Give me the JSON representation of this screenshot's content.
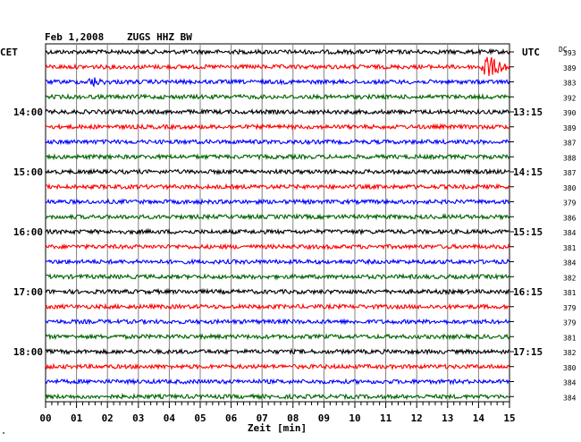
{
  "header": {
    "date": "Feb 1,2008",
    "station": "ZUGS HHZ BW"
  },
  "left_axis_label": "CET",
  "right_axis_label": "UTC",
  "dc_label": "DC",
  "xlabel": "Zeit [min]",
  "corner_mark": "\"",
  "colors": {
    "black": "#000000",
    "red": "#ff0000",
    "blue": "#0000ff",
    "green": "#006400",
    "grid": "#808080"
  },
  "chart_data": {
    "type": "line",
    "x_ticks": [
      "00",
      "01",
      "02",
      "03",
      "04",
      "05",
      "06",
      "07",
      "08",
      "09",
      "10",
      "11",
      "12",
      "13",
      "14",
      "15"
    ],
    "xlim": [
      0,
      15
    ],
    "trace_colors": [
      "black",
      "red",
      "blue",
      "green"
    ],
    "hour_labels_left": [
      {
        "trace": 4,
        "label": "14:00"
      },
      {
        "trace": 8,
        "label": "15:00"
      },
      {
        "trace": 12,
        "label": "16:00"
      },
      {
        "trace": 16,
        "label": "17:00"
      },
      {
        "trace": 20,
        "label": "18:00"
      }
    ],
    "hour_labels_right": [
      {
        "trace": 4,
        "label": "13:15"
      },
      {
        "trace": 8,
        "label": "14:15"
      },
      {
        "trace": 12,
        "label": "15:15"
      },
      {
        "trace": 16,
        "label": "16:15"
      },
      {
        "trace": 20,
        "label": "17:15"
      }
    ],
    "dc_values": [
      "393",
      "389",
      "383",
      "392",
      "390",
      "389",
      "387",
      "388",
      "387",
      "380",
      "379",
      "386",
      "384",
      "381",
      "384",
      "382",
      "381",
      "379",
      "379",
      "381",
      "382",
      "380",
      "384",
      "384"
    ],
    "events": [
      {
        "trace": 2,
        "minute": 1.5,
        "amplitude": "medium"
      },
      {
        "trace": 1,
        "minute": 14.2,
        "amplitude": "large"
      }
    ]
  }
}
